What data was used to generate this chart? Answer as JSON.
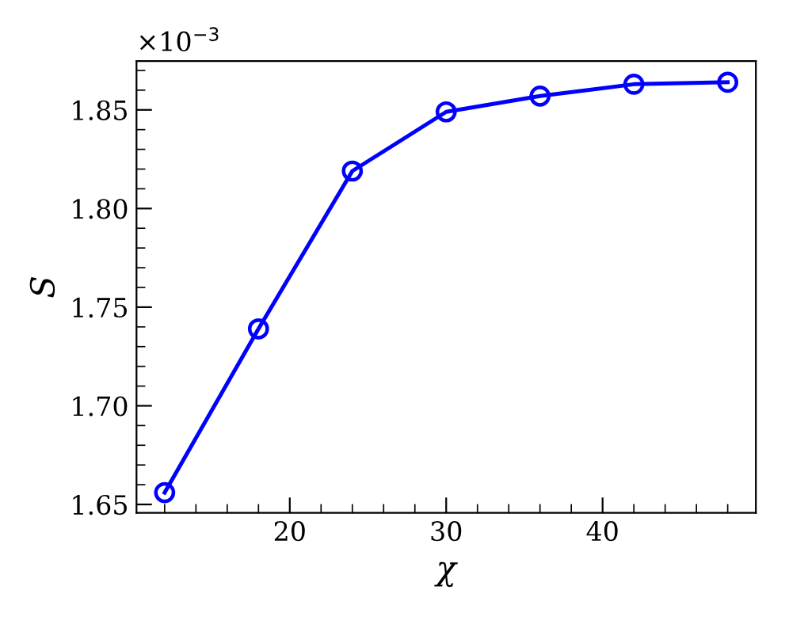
{
  "chart_data": {
    "type": "line",
    "xlabel": "χ",
    "ylabel": "S",
    "annotations": [
      "×10$^{−3}$"
    ],
    "x": [
      12,
      18,
      24,
      30,
      36,
      42,
      48
    ],
    "series": [
      {
        "color": "#0000ff",
        "values": [
          1.656,
          1.739,
          1.819,
          1.849,
          1.857,
          1.863,
          1.864
        ]
      }
    ],
    "marker": "circle",
    "line_style": "solid",
    "grid": false,
    "legend": false,
    "xlim": [
      10.2,
      49.8
    ],
    "xticks": [
      20,
      30,
      40
    ],
    "ylim": [
      1.6457,
      1.8747
    ],
    "yticks": [
      {
        "value": 1.65,
        "label": "1.65"
      },
      {
        "value": 1.7,
        "label": "1.70"
      },
      {
        "value": 1.75,
        "label": "1.75"
      },
      {
        "value": 1.8,
        "label": "1.80"
      },
      {
        "value": 1.85,
        "label": "1.85"
      }
    ]
  }
}
